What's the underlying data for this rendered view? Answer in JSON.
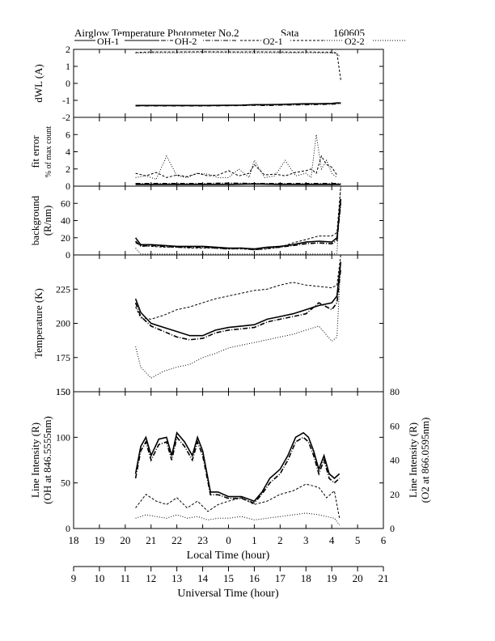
{
  "title": "Airglow Temperature Photometer No.2",
  "site": "Sata",
  "date": "160605",
  "legend": [
    {
      "label": "OH-1",
      "dash": ""
    },
    {
      "label": "OH-2",
      "dash": "6,2,1,2"
    },
    {
      "label": "O2-1",
      "dash": "3,2"
    },
    {
      "label": "O2-2",
      "dash": "1,2"
    }
  ],
  "x_axes": {
    "local": {
      "label": "Local Time (hour)",
      "ticks": [
        "18",
        "19",
        "20",
        "21",
        "22",
        "23",
        "0",
        "1",
        "2",
        "3",
        "4",
        "5",
        "6"
      ]
    },
    "universal": {
      "label": "Universal Time (hour)",
      "ticks": [
        "9",
        "10",
        "11",
        "12",
        "13",
        "14",
        "15",
        "16",
        "17",
        "18",
        "19",
        "20",
        "21"
      ]
    }
  },
  "chart_data": [
    {
      "type": "line",
      "panel": "dwl",
      "ylabel": "dWL (A)",
      "ylim": [
        -2,
        2
      ],
      "yticks": [
        "-2",
        "-1",
        "0",
        "1",
        "2"
      ],
      "series": [
        {
          "name": "OH-1",
          "x": [
            20.4,
            21,
            22,
            23,
            0.5,
            1,
            1.5,
            2,
            2.5,
            3,
            3.5,
            4,
            4.2,
            4.35
          ],
          "y": [
            -1.3,
            -1.3,
            -1.3,
            -1.3,
            -1.28,
            -1.25,
            -1.25,
            -1.24,
            -1.22,
            -1.2,
            -1.2,
            -1.18,
            -1.15,
            -1.15
          ]
        },
        {
          "name": "OH-2",
          "x": [
            20.4,
            21,
            22,
            23,
            0.5,
            1,
            1.5,
            2,
            2.5,
            3,
            3.5,
            4,
            4.2,
            4.35
          ],
          "y": [
            -1.32,
            -1.32,
            -1.32,
            -1.32,
            -1.3,
            -1.28,
            -1.3,
            -1.27,
            -1.26,
            -1.25,
            -1.24,
            -1.22,
            -1.2,
            -1.2
          ]
        },
        {
          "name": "O2-1",
          "x": [
            20.4,
            21,
            22,
            23,
            0.5,
            1,
            1.5,
            2,
            2.5,
            3,
            3.5,
            4,
            4.2,
            4.35
          ],
          "y": [
            1.82,
            1.85,
            1.85,
            1.86,
            1.85,
            1.86,
            1.85,
            1.85,
            1.84,
            1.85,
            1.84,
            1.84,
            1.8,
            0.2
          ]
        },
        {
          "name": "O2-2",
          "x": [
            20.4,
            21,
            22,
            23,
            0.5,
            1,
            1.5,
            2,
            2.5,
            3,
            3.5,
            4,
            4.2,
            4.3
          ],
          "y": [
            1.78,
            1.8,
            1.8,
            1.82,
            1.8,
            1.8,
            1.8,
            1.8,
            1.79,
            1.8,
            1.79,
            1.78,
            1.75,
            1.6
          ]
        }
      ]
    },
    {
      "type": "line",
      "panel": "fit",
      "ylabel": "fit error",
      "ylabel2": "% of max count",
      "ylim": [
        0,
        8
      ],
      "yticks": [
        "0",
        "2",
        "4",
        "6"
      ],
      "series": [
        {
          "name": "OH-1",
          "x": [
            20.4,
            21,
            22,
            23,
            0,
            1,
            2,
            3,
            4,
            4.35
          ],
          "y": [
            0.2,
            0.2,
            0.2,
            0.2,
            0.2,
            0.25,
            0.2,
            0.2,
            0.2,
            0.2
          ]
        },
        {
          "name": "OH-2",
          "x": [
            20.4,
            21,
            22,
            23,
            0,
            1,
            2,
            3,
            4,
            4.35
          ],
          "y": [
            0.3,
            0.3,
            0.3,
            0.3,
            0.35,
            0.3,
            0.3,
            0.3,
            0.3,
            0.3
          ]
        },
        {
          "name": "O2-1",
          "x": [
            20.4,
            20.8,
            21.2,
            21.6,
            22,
            22.4,
            22.8,
            23.2,
            23.6,
            0,
            0.4,
            0.8,
            1,
            1.4,
            1.8,
            2.2,
            2.6,
            3,
            3.2,
            3.4,
            3.6,
            3.8,
            4,
            4.2
          ],
          "y": [
            1.5,
            1.2,
            1.6,
            1.0,
            1.3,
            1.1,
            1.5,
            1.2,
            1.3,
            1.8,
            1.2,
            1.5,
            2.5,
            1.3,
            1.4,
            1.2,
            1.6,
            1.8,
            2.0,
            1.5,
            3.5,
            2.5,
            2.2,
            1.3
          ]
        },
        {
          "name": "O2-2",
          "x": [
            20.4,
            20.8,
            21.2,
            21.6,
            22,
            22.4,
            22.8,
            23.2,
            23.6,
            0,
            0.4,
            0.8,
            1,
            1.4,
            1.8,
            2.2,
            2.6,
            3,
            3.2,
            3.4,
            3.6,
            3.8,
            4,
            4.2
          ],
          "y": [
            1.0,
            1.2,
            0.8,
            3.5,
            1.2,
            1.0,
            1.5,
            1.4,
            1.0,
            1.0,
            2.0,
            1.0,
            3.0,
            1.0,
            1.2,
            3.0,
            1.2,
            1.5,
            1.0,
            6.0,
            2.0,
            3.0,
            1.5,
            1.0
          ]
        }
      ]
    },
    {
      "type": "line",
      "panel": "background",
      "ylabel": "background",
      "ylabel2": "(R/nm)",
      "ylim": [
        0,
        80
      ],
      "yticks": [
        "0",
        "20",
        "40",
        "60"
      ],
      "series": [
        {
          "name": "OH-1",
          "x": [
            20.4,
            20.6,
            21,
            21.5,
            22,
            22.5,
            23,
            23.5,
            0,
            0.5,
            1,
            1.5,
            2,
            2.5,
            3,
            3.5,
            4,
            4.2,
            4.35
          ],
          "y": [
            20,
            12,
            12,
            11,
            10,
            10,
            10,
            9,
            8,
            8,
            7,
            9,
            10,
            12,
            15,
            16,
            15,
            20,
            65
          ]
        },
        {
          "name": "OH-2",
          "x": [
            20.4,
            20.6,
            21,
            21.5,
            22,
            22.5,
            23,
            23.5,
            0,
            0.5,
            1,
            1.5,
            2,
            2.5,
            3,
            3.5,
            4,
            4.2,
            4.35
          ],
          "y": [
            16,
            10,
            11,
            10,
            9,
            9,
            9,
            8,
            7,
            8,
            6,
            8,
            9,
            11,
            13,
            14,
            13,
            17,
            60
          ]
        },
        {
          "name": "O2-1",
          "x": [
            20.4,
            20.6,
            21,
            21.5,
            22,
            22.5,
            23,
            23.5,
            0,
            0.5,
            1,
            1.5,
            2,
            2.5,
            3,
            3.5,
            4,
            4.2,
            4.35
          ],
          "y": [
            14,
            11,
            10,
            9,
            9,
            8,
            8,
            8,
            7,
            7,
            6,
            7,
            9,
            14,
            18,
            22,
            22,
            26,
            80
          ]
        },
        {
          "name": "O2-2",
          "x": [
            20.4,
            20.6,
            21,
            21.5,
            22,
            22.5,
            23,
            23.5,
            0,
            0.5,
            1,
            1.5,
            2,
            2.5,
            3,
            3.5,
            4,
            4.2,
            4.35
          ],
          "y": [
            8,
            1,
            1,
            1,
            1,
            1,
            1,
            1,
            1,
            1,
            1,
            1,
            1,
            1,
            1,
            1,
            1,
            2,
            80
          ]
        }
      ]
    },
    {
      "type": "line",
      "panel": "temperature",
      "ylabel": "Temperature (K)",
      "ylim": [
        150,
        250
      ],
      "yticks": [
        "150",
        "175",
        "200",
        "225"
      ],
      "series": [
        {
          "name": "OH-1",
          "x": [
            20.4,
            20.6,
            21,
            21.5,
            22,
            22.5,
            23,
            23.5,
            0,
            0.5,
            1,
            1.5,
            2,
            2.5,
            3,
            3.5,
            4,
            4.2,
            4.35
          ],
          "y": [
            218,
            208,
            200,
            197,
            194,
            191,
            191,
            195,
            197,
            198,
            199,
            203,
            205,
            207,
            210,
            213,
            215,
            220,
            245
          ]
        },
        {
          "name": "OH-2",
          "x": [
            20.4,
            20.6,
            21,
            21.5,
            22,
            22.5,
            23,
            23.5,
            0,
            0.5,
            1,
            1.5,
            2,
            2.5,
            3,
            3.5,
            4,
            4.2,
            4.35
          ],
          "y": [
            215,
            205,
            198,
            194,
            190,
            188,
            189,
            193,
            195,
            196,
            197,
            201,
            203,
            205,
            207,
            215,
            210,
            215,
            240
          ]
        },
        {
          "name": "O2-1",
          "x": [
            20.4,
            20.6,
            21,
            21.5,
            22,
            22.5,
            23,
            23.5,
            0,
            0.5,
            1,
            1.5,
            2,
            2.5,
            3,
            3.5,
            4,
            4.2,
            4.35
          ],
          "y": [
            212,
            204,
            203,
            206,
            210,
            212,
            215,
            218,
            220,
            222,
            224,
            225,
            228,
            230,
            228,
            227,
            226,
            228,
            250
          ]
        },
        {
          "name": "O2-2",
          "x": [
            20.4,
            20.6,
            21,
            21.5,
            22,
            22.5,
            23,
            23.5,
            0,
            0.5,
            1,
            1.5,
            2,
            2.5,
            3,
            3.5,
            4,
            4.2,
            4.35
          ],
          "y": [
            183,
            168,
            160,
            165,
            168,
            170,
            175,
            178,
            182,
            184,
            186,
            188,
            190,
            192,
            195,
            198,
            187,
            190,
            245
          ]
        }
      ]
    },
    {
      "type": "line",
      "panel": "intensity",
      "ylabel": "Line Intensity (R)",
      "ylabel2": "(OH at 846.5555nm)",
      "ylabel_right": "Line Intensity (R)",
      "ylabel_right2": "(O2 at 866.0595nm)",
      "ylim": [
        0,
        150
      ],
      "ylim_right": [
        0,
        80
      ],
      "yticks": [
        "0",
        "50",
        "100",
        "150"
      ],
      "yticks_right": [
        "0",
        "20",
        "40",
        "60",
        "80"
      ],
      "series": [
        {
          "name": "OH-1",
          "axis": "left",
          "x": [
            20.4,
            20.6,
            20.8,
            21,
            21.3,
            21.6,
            21.8,
            22,
            22.3,
            22.6,
            22.8,
            23,
            23.3,
            23.6,
            0,
            0.5,
            1,
            1.3,
            1.6,
            2,
            2.3,
            2.6,
            2.9,
            3.1,
            3.3,
            3.5,
            3.7,
            3.9,
            4.1,
            4.3
          ],
          "y": [
            60,
            90,
            100,
            80,
            98,
            100,
            80,
            105,
            95,
            80,
            100,
            85,
            40,
            40,
            35,
            35,
            30,
            40,
            55,
            65,
            80,
            100,
            105,
            100,
            85,
            65,
            80,
            60,
            55,
            60
          ]
        },
        {
          "name": "OH-2",
          "axis": "left",
          "x": [
            20.4,
            20.6,
            20.8,
            21,
            21.3,
            21.6,
            21.8,
            22,
            22.3,
            22.6,
            22.8,
            23,
            23.3,
            23.6,
            0,
            0.5,
            1,
            1.3,
            1.6,
            2,
            2.3,
            2.6,
            2.9,
            3.1,
            3.3,
            3.5,
            3.7,
            3.9,
            4.1,
            4.3
          ],
          "y": [
            55,
            85,
            95,
            75,
            92,
            95,
            75,
            100,
            90,
            75,
            95,
            80,
            37,
            37,
            33,
            33,
            28,
            38,
            50,
            60,
            75,
            95,
            100,
            95,
            80,
            60,
            75,
            55,
            50,
            55
          ]
        },
        {
          "name": "O2-1",
          "axis": "right",
          "x": [
            20.4,
            20.8,
            21.2,
            21.6,
            22,
            22.4,
            22.8,
            23.2,
            23.6,
            0,
            0.5,
            1,
            1.5,
            2,
            2.5,
            3,
            3.5,
            3.8,
            4.1,
            4.3
          ],
          "y": [
            12,
            20,
            16,
            14,
            18,
            12,
            16,
            10,
            14,
            16,
            18,
            14,
            16,
            20,
            22,
            26,
            24,
            18,
            22,
            6
          ]
        },
        {
          "name": "O2-2",
          "axis": "right",
          "x": [
            20.4,
            20.8,
            21.2,
            21.6,
            22,
            22.4,
            22.8,
            23.2,
            23.6,
            0,
            0.5,
            1,
            1.5,
            2,
            2.5,
            3,
            3.5,
            3.8,
            4.1,
            4.3
          ],
          "y": [
            6,
            8,
            7,
            6,
            8,
            6,
            7,
            5,
            6,
            6,
            7,
            5,
            6,
            7,
            8,
            9,
            8,
            7,
            6,
            2
          ]
        }
      ]
    }
  ]
}
